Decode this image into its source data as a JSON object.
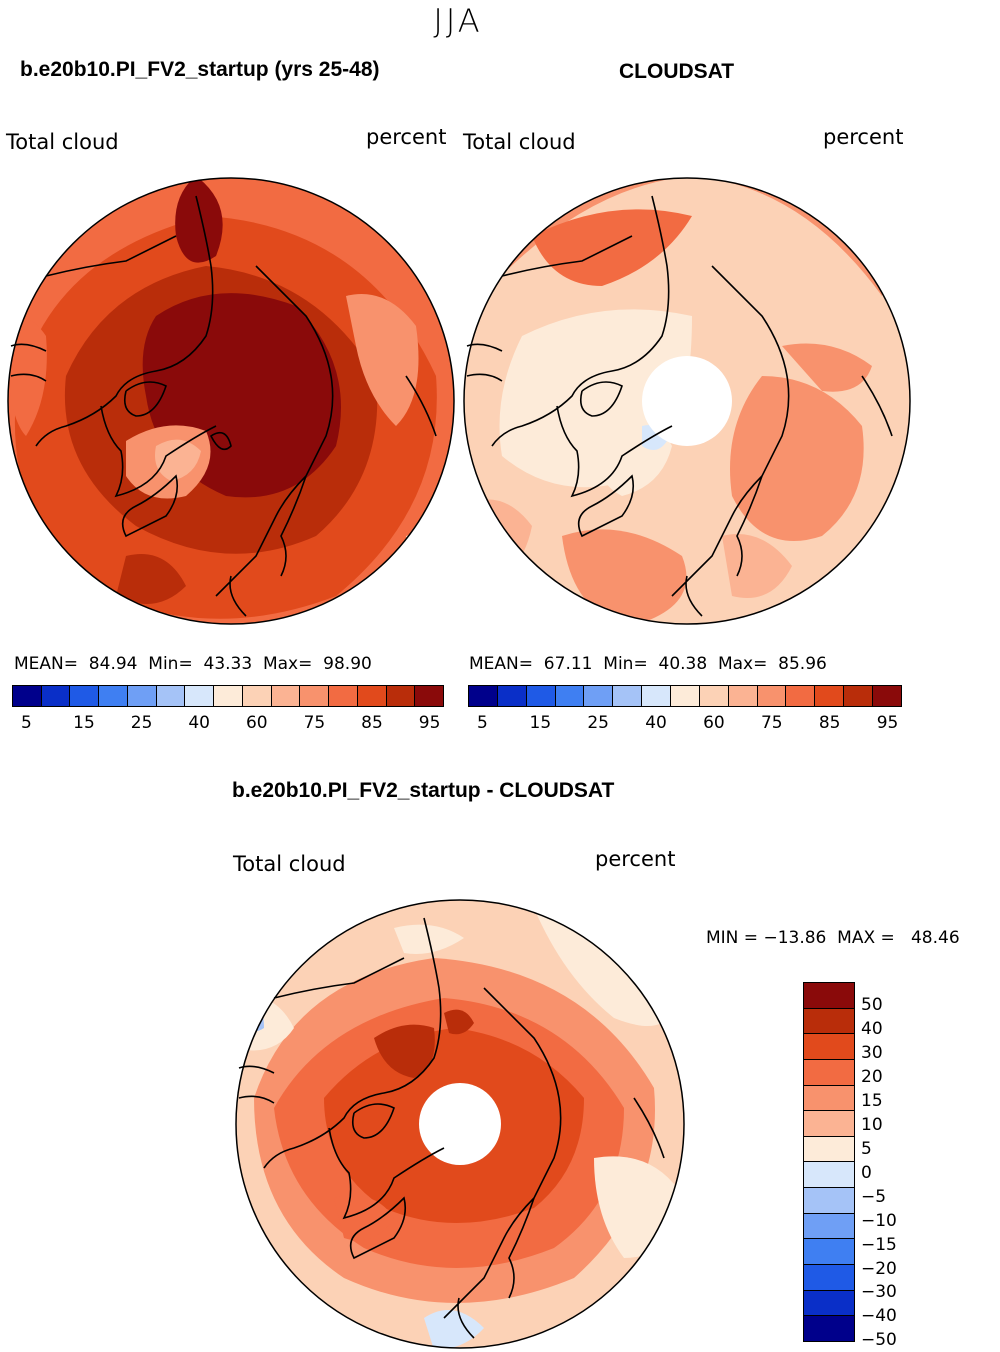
{
  "season": "JJA",
  "panel_model": {
    "title": "b.e20b10.PI_FV2_startup (yrs 25-48)",
    "variable": "Total cloud",
    "units": "percent",
    "stats_line": "MEAN=  84.94  Min=  43.33  Max=  98.90"
  },
  "panel_obs": {
    "title": "CLOUDSAT",
    "variable": "Total cloud",
    "units": "percent",
    "stats_line": "MEAN=  67.11  Min=  40.38  Max=  85.96"
  },
  "panel_diff": {
    "title": "b.e20b10.PI_FV2_startup - CLOUDSAT",
    "variable": "Total cloud",
    "units": "percent",
    "minmax_line": "MIN = −13.86  MAX =   48.46"
  },
  "abs_colorbar": {
    "colors": [
      "#00008b",
      "#0a2fc8",
      "#1f5ae6",
      "#3f7ff2",
      "#6f9ff5",
      "#a5c3f7",
      "#d7e7fb",
      "#fdebd9",
      "#fcd2b6",
      "#fbb393",
      "#f8926d",
      "#f26b42",
      "#e14a1c",
      "#b92d0a",
      "#8a0a0a"
    ],
    "labels": [
      "5",
      "15",
      "25",
      "40",
      "60",
      "75",
      "85",
      "95"
    ]
  },
  "diff_colorbar": {
    "colors_top_to_bottom": [
      "#8a0a0a",
      "#b92d0a",
      "#e14a1c",
      "#f26b42",
      "#f8926d",
      "#fbb393",
      "#fdebd9",
      "#d7e7fb",
      "#a5c3f7",
      "#6f9ff5",
      "#3f7ff2",
      "#1f5ae6",
      "#0a2fc8",
      "#00008b"
    ],
    "labels": [
      "50",
      "40",
      "30",
      "20",
      "15",
      "10",
      "5",
      "0",
      "−5",
      "−10",
      "−15",
      "−20",
      "−30",
      "−40",
      "−50"
    ]
  }
}
